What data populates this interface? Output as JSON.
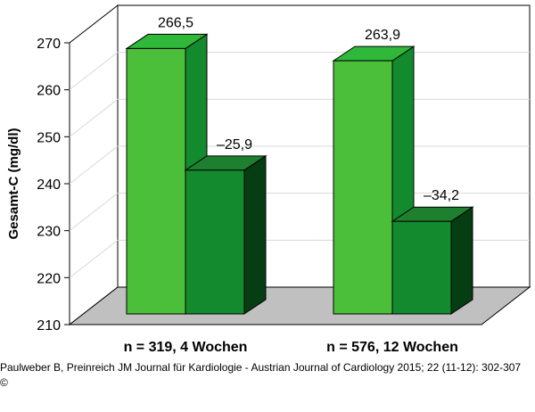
{
  "chart_data": {
    "type": "bar",
    "ylabel": "Gesamt-C (mg/dl)",
    "ylim": [
      210,
      270
    ],
    "yticks": [
      "210",
      "220",
      "230",
      "240",
      "250",
      "260",
      "270"
    ],
    "categories": [
      "n = 319, 4 Wochen",
      "n = 576, 12 Wochen"
    ],
    "series": [
      {
        "values": [
          266.5,
          263.9
        ],
        "labels": [
          "266,5",
          "263,9"
        ],
        "color": "#4cbf3a"
      },
      {
        "values": [
          240.6,
          229.7
        ],
        "labels": [
          "–25,9",
          "–34,2"
        ],
        "color": "#138a2e"
      }
    ],
    "grid": true
  },
  "citation": {
    "line1": "Paulweber B, Preinreich JM Journal für Kardiologie - Austrian Journal of Cardiology 2015; 22 (11-12): 302-307",
    "line2": "©"
  },
  "colors": {
    "floor": "#c0c0c0",
    "light_front": "#4cbf3a",
    "light_top": "#2fb83a",
    "light_side": "#138a2e",
    "dark_front": "#138a2e",
    "dark_top": "#1e7f2e",
    "dark_side": "#063d12"
  }
}
